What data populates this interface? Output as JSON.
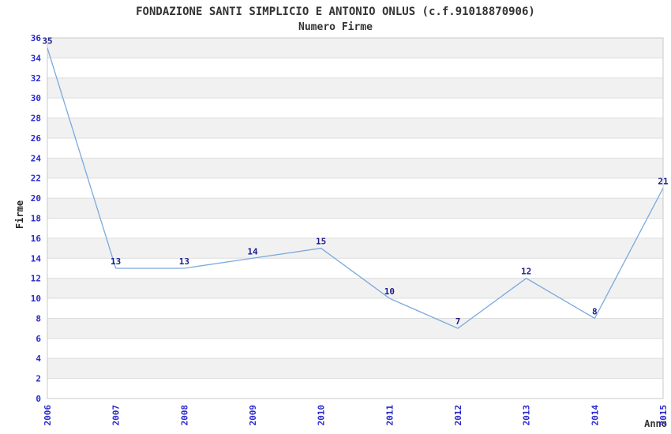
{
  "chart_data": {
    "type": "line",
    "title": "FONDAZIONE SANTI SIMPLICIO E ANTONIO ONLUS (c.f.91018870906)",
    "subtitle": "Numero Firme",
    "xlabel": "Anno",
    "ylabel": "Firme",
    "categories": [
      "2006",
      "2007",
      "2008",
      "2009",
      "2010",
      "2011",
      "2012",
      "2013",
      "2014",
      "2015"
    ],
    "values": [
      35,
      13,
      13,
      14,
      15,
      10,
      7,
      12,
      8,
      21
    ],
    "point_labels": [
      "35",
      "13",
      "13",
      "14",
      "15",
      "10",
      "7",
      "12",
      "8",
      "21"
    ],
    "ylim": [
      0,
      36
    ],
    "y_ticks": [
      0,
      2,
      4,
      6,
      8,
      10,
      12,
      14,
      16,
      18,
      20,
      22,
      24,
      26,
      28,
      30,
      32,
      34,
      36
    ],
    "grid": "horizontal-bands",
    "legend": "none",
    "colors": {
      "line": "#7aaade",
      "point_label": "#1c1c8a",
      "tick_label": "#2727cc",
      "band_fill": "#f1f1f1",
      "band_alt": "#ffffff",
      "gridline": "#dddddd",
      "plot_border": "#c8c8c8",
      "title_text": "#333333"
    }
  }
}
